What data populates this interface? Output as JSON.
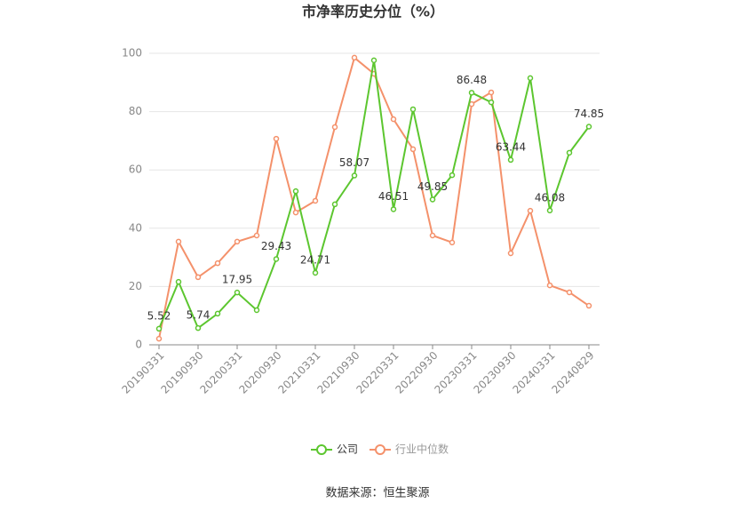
{
  "chart_data": {
    "type": "line",
    "title": "市净率历史分位（%）",
    "categories": [
      "20190331",
      null,
      "20190930",
      null,
      "20200331",
      null,
      "20200930",
      null,
      "20210331",
      null,
      "20210930",
      null,
      "20220331",
      null,
      "20220930",
      null,
      "20230331",
      null,
      "20230930",
      null,
      "20240331",
      null,
      "20240829"
    ],
    "series": [
      {
        "name": "公司",
        "color": "#5cc62f",
        "values": [
          5.52,
          21.6,
          5.74,
          10.7,
          17.95,
          11.9,
          29.43,
          52.7,
          24.71,
          48.2,
          58.07,
          97.6,
          46.51,
          80.8,
          49.85,
          58.2,
          86.48,
          83.2,
          63.44,
          91.5,
          46.08,
          65.9,
          74.85
        ],
        "value_labels": [
          "5.52",
          null,
          "5.74",
          null,
          "17.95",
          null,
          "29.43",
          null,
          "24.71",
          null,
          "58.07",
          null,
          "46.51",
          null,
          "49.85",
          null,
          "86.48",
          null,
          "63.44",
          null,
          "46.08",
          null,
          "74.85"
        ]
      },
      {
        "name": "行业中位数",
        "color": "#f4916b",
        "values": [
          2.1,
          35.4,
          23.2,
          28.0,
          35.4,
          37.5,
          70.7,
          45.4,
          49.4,
          74.7,
          98.5,
          93.0,
          77.4,
          67.1,
          37.5,
          35.1,
          82.6,
          86.6,
          31.4,
          46.0,
          20.4,
          18.0,
          13.4
        ]
      }
    ],
    "ylim": [
      0,
      100
    ],
    "yticks": [
      0,
      20,
      40,
      60,
      80,
      100
    ],
    "grid": true,
    "legend": "bottom",
    "source": "数据来源：恒生聚源"
  }
}
